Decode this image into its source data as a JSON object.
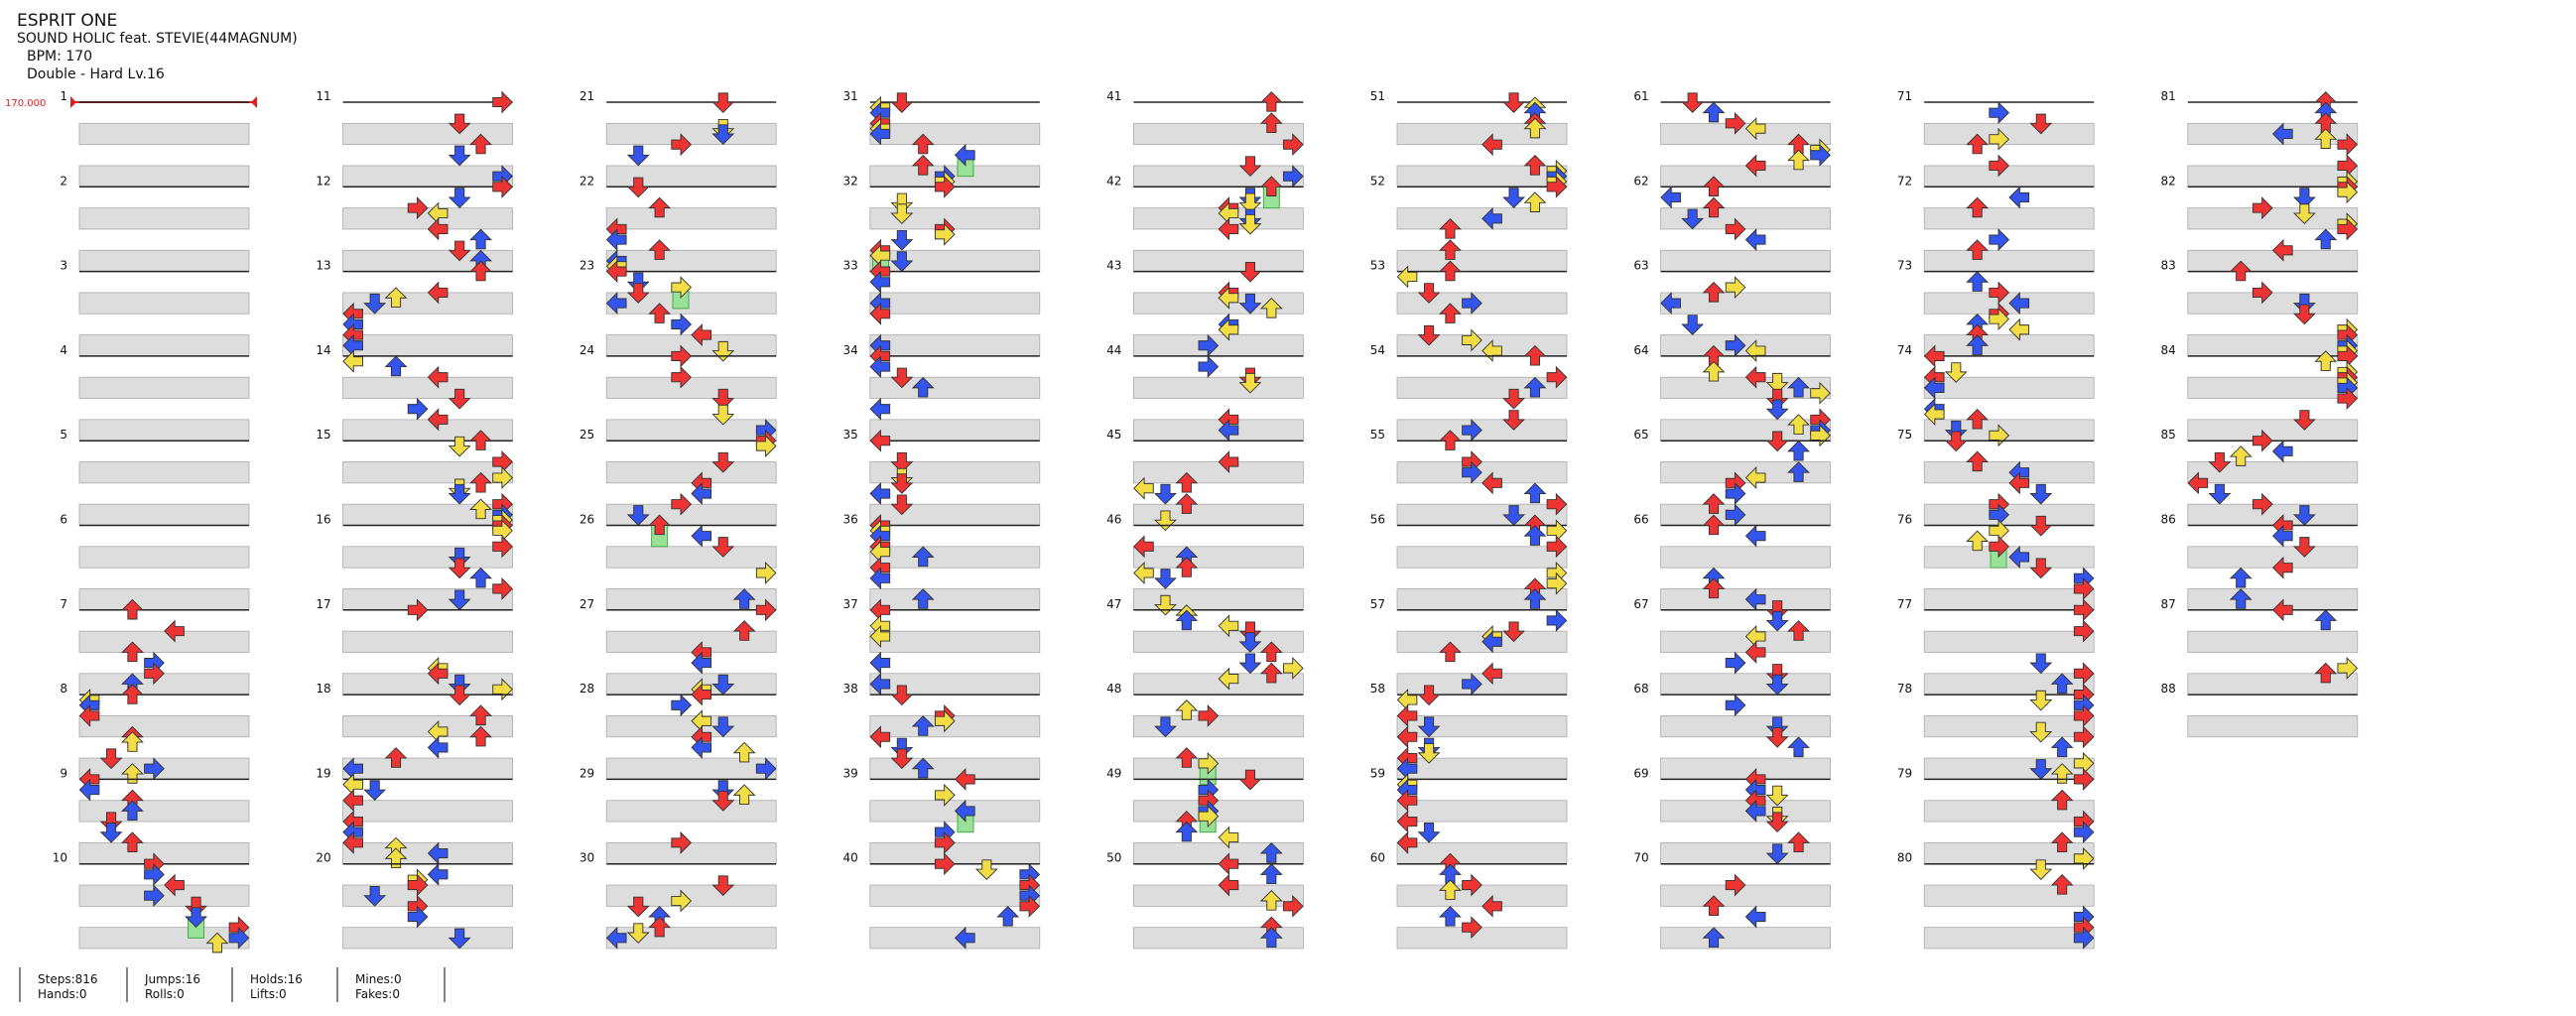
{
  "header": {
    "title": "ESPRIT ONE",
    "artist": "SOUND HOLIC feat. STEVIE(44MAGNUM)",
    "bpm": "BPM: 170",
    "difficulty": "Double - Hard Lv.16"
  },
  "bpm_marker": "170.000",
  "measures": [
    "1",
    "2",
    "3",
    "4",
    "5",
    "6",
    "7",
    "8",
    "9",
    "10",
    "11",
    "12",
    "13",
    "14",
    "15",
    "16",
    "17",
    "18",
    "19",
    "20",
    "21",
    "22",
    "23",
    "24",
    "25",
    "26",
    "27",
    "28",
    "29",
    "30",
    "31",
    "32",
    "33",
    "34",
    "35",
    "36",
    "37",
    "38",
    "39",
    "40",
    "41",
    "42",
    "43",
    "44",
    "45",
    "46",
    "47",
    "48",
    "49",
    "50",
    "51",
    "52",
    "53",
    "54",
    "55",
    "56",
    "57",
    "58",
    "59",
    "60",
    "61",
    "62",
    "63",
    "64",
    "65",
    "66",
    "67",
    "68",
    "69",
    "70",
    "71",
    "72",
    "73",
    "74",
    "75",
    "76",
    "77",
    "78",
    "79",
    "80",
    "81",
    "82",
    "83",
    "84",
    "85",
    "86",
    "87",
    "88"
  ],
  "stats": [
    [
      "Steps:816",
      "Hands:0"
    ],
    [
      "Jumps:16",
      "Rolls:0"
    ],
    [
      "Holds:16",
      "Lifts:0"
    ],
    [
      "Mines:0",
      "Fakes:0"
    ]
  ]
}
